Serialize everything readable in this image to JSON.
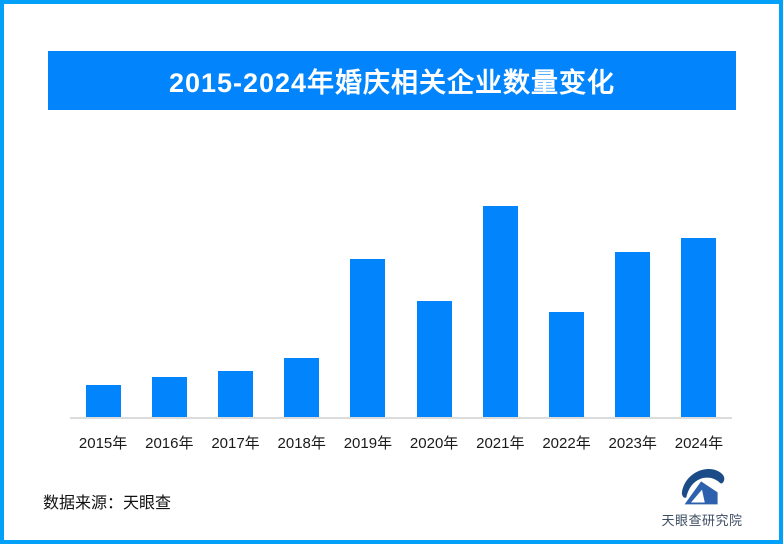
{
  "frame": {
    "border_color": "#02A0F8",
    "background": "#FFFFFF"
  },
  "banner": {
    "title": "2015-2024年婚庆相关企业数量变化",
    "bg_color": "#0184FC",
    "text_color": "#FFFFFF"
  },
  "chart_data": {
    "type": "bar",
    "title": "2015-2024年婚庆相关企业数量变化",
    "categories": [
      "2015年",
      "2016年",
      "2017年",
      "2018年",
      "2019年",
      "2020年",
      "2021年",
      "2022年",
      "2023年",
      "2024年"
    ],
    "values": [
      15,
      19,
      22,
      28,
      75,
      55,
      100,
      50,
      78,
      85
    ],
    "value_scale_note": "no numeric y-axis shown; values are relative bar heights with max bar (2021) = 100",
    "bar_color": "#0184FC",
    "axis_line_color": "#DCDCDC",
    "xlabel": "",
    "ylabel": "",
    "grid": false,
    "legend": false
  },
  "footer": {
    "source_label": "数据来源：天眼查",
    "logo_text": "天眼查研究院"
  },
  "logo_colors": {
    "swoosh": "#1B4C87",
    "mountain": "#2E61AD",
    "text": "#3D4D63"
  }
}
